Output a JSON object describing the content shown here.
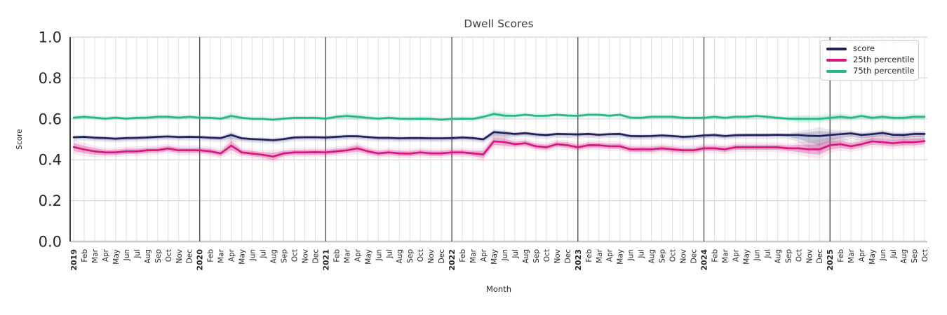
{
  "figure": {
    "title": "Dwell Scores",
    "background": "#ffffff"
  },
  "colors": {
    "score_line": "#21215e",
    "p25_line": "#d2197f",
    "p75_line": "#26b784",
    "grid_minor": "#e0e0e0",
    "grid_major_h": "#dcdcdc",
    "zero_line": "#c8c8c8",
    "year_line": "#3a3a3a",
    "axis_spine": "#2b2b2b",
    "tick_text": "#262626",
    "title_text": "#3d3d3d",
    "legend_border": "#cccccc"
  },
  "legend": {
    "position": "upper right",
    "items": [
      {
        "label": "score",
        "color": "#21215e"
      },
      {
        "label": "25th percentile",
        "color": "#d2197f"
      },
      {
        "label": "75th percentile",
        "color": "#26b784"
      }
    ]
  },
  "chart_data": {
    "type": "line",
    "title": "Dwell Scores",
    "xlabel": "Month",
    "ylabel": "Score",
    "ylim": [
      0.0,
      1.0
    ],
    "yticks": [
      0.0,
      0.2,
      0.4,
      0.6,
      0.8,
      1.0
    ],
    "ytick_labels": [
      "0.0",
      "0.2",
      "0.4",
      "0.6",
      "0.8",
      "1.0"
    ],
    "grid": true,
    "legend_position": "upper right",
    "x_labels": [
      "2019",
      "Feb",
      "Mar",
      "Apr",
      "May",
      "Jun",
      "Jul",
      "Aug",
      "Sep",
      "Oct",
      "Nov",
      "Dec",
      "2020",
      "Feb",
      "Mar",
      "Apr",
      "May",
      "Jun",
      "Jul",
      "Aug",
      "Sep",
      "Oct",
      "Nov",
      "Dec",
      "2021",
      "Feb",
      "Mar",
      "Apr",
      "May",
      "Jun",
      "Jul",
      "Aug",
      "Sep",
      "Oct",
      "Nov",
      "Dec",
      "2022",
      "Feb",
      "Mar",
      "Apr",
      "May",
      "Jun",
      "Jul",
      "Aug",
      "Sep",
      "Oct",
      "Nov",
      "Dec",
      "2023",
      "Feb",
      "Mar",
      "Apr",
      "May",
      "Jun",
      "Jul",
      "Aug",
      "Sep",
      "Oct",
      "Nov",
      "Dec",
      "2024",
      "Feb",
      "Mar",
      "Apr",
      "May",
      "Jun",
      "Jul",
      "Aug",
      "Sep",
      "Oct",
      "Nov",
      "Dec",
      "2025",
      "Feb",
      "Mar",
      "Apr",
      "May",
      "Jun",
      "Jul",
      "Aug",
      "Sep",
      "Oct"
    ],
    "year_boundary_indices": [
      12,
      24,
      36,
      48,
      60,
      72
    ],
    "series": [
      {
        "name": "score",
        "color": "#21215e",
        "values": [
          0.51,
          0.512,
          0.508,
          0.506,
          0.503,
          0.506,
          0.507,
          0.509,
          0.512,
          0.514,
          0.511,
          0.512,
          0.511,
          0.508,
          0.506,
          0.521,
          0.505,
          0.501,
          0.499,
          0.496,
          0.501,
          0.509,
          0.51,
          0.51,
          0.509,
          0.512,
          0.515,
          0.515,
          0.511,
          0.507,
          0.507,
          0.505,
          0.506,
          0.506,
          0.505,
          0.505,
          0.506,
          0.509,
          0.506,
          0.5,
          0.535,
          0.531,
          0.526,
          0.53,
          0.524,
          0.521,
          0.526,
          0.525,
          0.524,
          0.526,
          0.522,
          0.525,
          0.526,
          0.516,
          0.515,
          0.516,
          0.519,
          0.516,
          0.512,
          0.514,
          0.519,
          0.521,
          0.516,
          0.52,
          0.521,
          0.521,
          0.521,
          0.522,
          0.521,
          0.521,
          0.517,
          0.516,
          0.521,
          0.525,
          0.529,
          0.521,
          0.525,
          0.531,
          0.522,
          0.521,
          0.526,
          0.526
        ],
        "ci_halfwidth": [
          0.008,
          0.008,
          0.008,
          0.008,
          0.008,
          0.008,
          0.008,
          0.008,
          0.008,
          0.008,
          0.008,
          0.008,
          0.008,
          0.008,
          0.008,
          0.014,
          0.008,
          0.008,
          0.008,
          0.008,
          0.008,
          0.008,
          0.008,
          0.008,
          0.008,
          0.008,
          0.008,
          0.008,
          0.008,
          0.008,
          0.008,
          0.008,
          0.008,
          0.008,
          0.008,
          0.008,
          0.008,
          0.008,
          0.008,
          0.008,
          0.012,
          0.012,
          0.008,
          0.008,
          0.008,
          0.008,
          0.008,
          0.008,
          0.008,
          0.008,
          0.008,
          0.008,
          0.008,
          0.008,
          0.008,
          0.008,
          0.008,
          0.008,
          0.008,
          0.008,
          0.008,
          0.008,
          0.008,
          0.008,
          0.008,
          0.008,
          0.008,
          0.008,
          0.008,
          0.015,
          0.025,
          0.035,
          0.022,
          0.015,
          0.012,
          0.012,
          0.012,
          0.012,
          0.012,
          0.012,
          0.012,
          0.012
        ]
      },
      {
        "name": "25th percentile",
        "color": "#d2197f",
        "values": [
          0.462,
          0.45,
          0.441,
          0.436,
          0.436,
          0.441,
          0.441,
          0.446,
          0.447,
          0.455,
          0.446,
          0.446,
          0.446,
          0.441,
          0.431,
          0.469,
          0.436,
          0.43,
          0.424,
          0.416,
          0.431,
          0.436,
          0.436,
          0.437,
          0.436,
          0.441,
          0.446,
          0.456,
          0.441,
          0.431,
          0.436,
          0.431,
          0.43,
          0.436,
          0.431,
          0.431,
          0.436,
          0.436,
          0.431,
          0.426,
          0.49,
          0.486,
          0.476,
          0.481,
          0.466,
          0.461,
          0.476,
          0.471,
          0.461,
          0.471,
          0.471,
          0.466,
          0.466,
          0.451,
          0.451,
          0.451,
          0.456,
          0.451,
          0.446,
          0.446,
          0.456,
          0.456,
          0.451,
          0.461,
          0.461,
          0.461,
          0.461,
          0.461,
          0.456,
          0.456,
          0.451,
          0.451,
          0.471,
          0.476,
          0.466,
          0.476,
          0.49,
          0.486,
          0.481,
          0.486,
          0.486,
          0.491
        ],
        "ci_halfwidth": [
          0.02,
          0.018,
          0.016,
          0.013,
          0.013,
          0.013,
          0.013,
          0.013,
          0.013,
          0.013,
          0.013,
          0.013,
          0.013,
          0.013,
          0.013,
          0.022,
          0.013,
          0.013,
          0.013,
          0.018,
          0.013,
          0.013,
          0.013,
          0.013,
          0.013,
          0.013,
          0.013,
          0.016,
          0.013,
          0.013,
          0.013,
          0.013,
          0.013,
          0.013,
          0.013,
          0.013,
          0.013,
          0.013,
          0.013,
          0.018,
          0.018,
          0.018,
          0.013,
          0.013,
          0.013,
          0.013,
          0.013,
          0.013,
          0.013,
          0.013,
          0.013,
          0.013,
          0.013,
          0.013,
          0.013,
          0.013,
          0.013,
          0.013,
          0.013,
          0.013,
          0.013,
          0.013,
          0.013,
          0.013,
          0.013,
          0.013,
          0.013,
          0.013,
          0.013,
          0.018,
          0.022,
          0.026,
          0.022,
          0.018,
          0.016,
          0.016,
          0.016,
          0.016,
          0.016,
          0.016,
          0.016,
          0.016
        ]
      },
      {
        "name": "75th percentile",
        "color": "#26b784",
        "values": [
          0.606,
          0.61,
          0.606,
          0.601,
          0.606,
          0.601,
          0.605,
          0.606,
          0.61,
          0.61,
          0.606,
          0.61,
          0.606,
          0.605,
          0.601,
          0.614,
          0.605,
          0.6,
          0.6,
          0.596,
          0.601,
          0.605,
          0.605,
          0.605,
          0.601,
          0.61,
          0.614,
          0.61,
          0.605,
          0.601,
          0.605,
          0.601,
          0.6,
          0.601,
          0.6,
          0.596,
          0.6,
          0.601,
          0.6,
          0.61,
          0.624,
          0.616,
          0.615,
          0.62,
          0.615,
          0.615,
          0.62,
          0.616,
          0.615,
          0.62,
          0.62,
          0.615,
          0.62,
          0.606,
          0.605,
          0.61,
          0.61,
          0.61,
          0.605,
          0.605,
          0.605,
          0.61,
          0.605,
          0.61,
          0.61,
          0.614,
          0.61,
          0.605,
          0.601,
          0.6,
          0.6,
          0.6,
          0.605,
          0.61,
          0.605,
          0.614,
          0.605,
          0.61,
          0.605,
          0.605,
          0.61,
          0.61
        ],
        "ci_halfwidth": [
          0.007,
          0.007,
          0.007,
          0.007,
          0.007,
          0.007,
          0.007,
          0.007,
          0.007,
          0.007,
          0.007,
          0.007,
          0.007,
          0.007,
          0.007,
          0.011,
          0.007,
          0.007,
          0.007,
          0.007,
          0.007,
          0.007,
          0.007,
          0.007,
          0.007,
          0.007,
          0.01,
          0.01,
          0.007,
          0.007,
          0.007,
          0.007,
          0.007,
          0.007,
          0.007,
          0.007,
          0.007,
          0.007,
          0.007,
          0.007,
          0.011,
          0.011,
          0.007,
          0.007,
          0.007,
          0.007,
          0.007,
          0.007,
          0.007,
          0.007,
          0.007,
          0.007,
          0.007,
          0.007,
          0.007,
          0.007,
          0.007,
          0.007,
          0.007,
          0.007,
          0.007,
          0.007,
          0.007,
          0.007,
          0.007,
          0.007,
          0.007,
          0.007,
          0.007,
          0.012,
          0.012,
          0.012,
          0.012,
          0.012,
          0.009,
          0.009,
          0.009,
          0.009,
          0.009,
          0.009,
          0.009,
          0.009
        ]
      }
    ]
  }
}
